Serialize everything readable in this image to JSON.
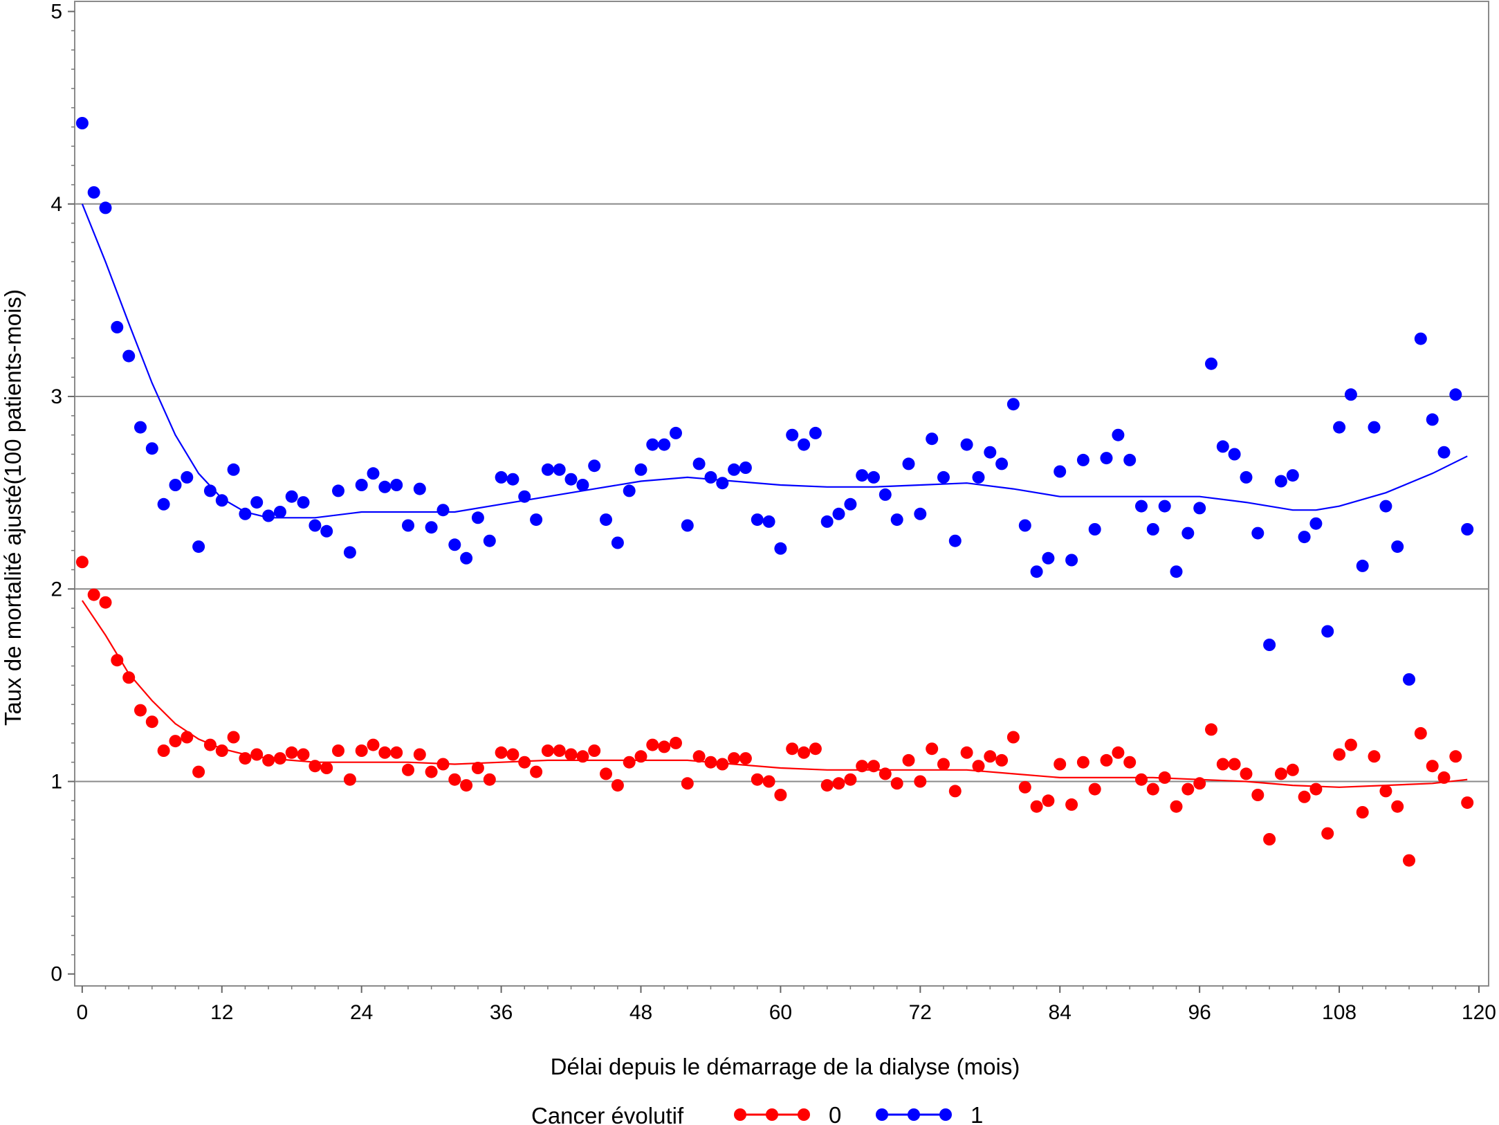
{
  "chart_data": {
    "type": "scatter",
    "title": "",
    "xlabel": "Délai depuis le démarrage de la dialyse (mois)",
    "ylabel": "Taux de mortalité ajusté(100 patients-mois)",
    "xlim": [
      0,
      120
    ],
    "ylim": [
      0,
      5
    ],
    "x_ticks": [
      "0",
      "12",
      "24",
      "36",
      "48",
      "60",
      "72",
      "84",
      "96",
      "108",
      "120"
    ],
    "y_ticks": [
      "0",
      "1",
      "2",
      "3",
      "4",
      "5"
    ],
    "grid": "horizontal",
    "legend": {
      "title": "Cancer évolutif",
      "placement": "bottom",
      "entries": [
        "0",
        "1"
      ]
    },
    "series": [
      {
        "name": "0",
        "color": "#ff0000",
        "points": [
          [
            0,
            2.14
          ],
          [
            1,
            1.97
          ],
          [
            2,
            1.93
          ],
          [
            3,
            1.63
          ],
          [
            4,
            1.54
          ],
          [
            5,
            1.37
          ],
          [
            6,
            1.31
          ],
          [
            7,
            1.16
          ],
          [
            8,
            1.21
          ],
          [
            9,
            1.23
          ],
          [
            10,
            1.05
          ],
          [
            11,
            1.19
          ],
          [
            12,
            1.16
          ],
          [
            13,
            1.23
          ],
          [
            14,
            1.12
          ],
          [
            15,
            1.14
          ],
          [
            16,
            1.11
          ],
          [
            17,
            1.12
          ],
          [
            18,
            1.15
          ],
          [
            19,
            1.14
          ],
          [
            20,
            1.08
          ],
          [
            21,
            1.07
          ],
          [
            22,
            1.16
          ],
          [
            23,
            1.01
          ],
          [
            24,
            1.16
          ],
          [
            25,
            1.19
          ],
          [
            26,
            1.15
          ],
          [
            27,
            1.15
          ],
          [
            28,
            1.06
          ],
          [
            29,
            1.14
          ],
          [
            30,
            1.05
          ],
          [
            31,
            1.09
          ],
          [
            32,
            1.01
          ],
          [
            33,
            0.98
          ],
          [
            34,
            1.07
          ],
          [
            35,
            1.01
          ],
          [
            36,
            1.15
          ],
          [
            37,
            1.14
          ],
          [
            38,
            1.1
          ],
          [
            39,
            1.05
          ],
          [
            40,
            1.16
          ],
          [
            41,
            1.16
          ],
          [
            42,
            1.14
          ],
          [
            43,
            1.13
          ],
          [
            44,
            1.16
          ],
          [
            45,
            1.04
          ],
          [
            46,
            0.98
          ],
          [
            47,
            1.1
          ],
          [
            48,
            1.13
          ],
          [
            49,
            1.19
          ],
          [
            50,
            1.18
          ],
          [
            51,
            1.2
          ],
          [
            52,
            0.99
          ],
          [
            53,
            1.13
          ],
          [
            54,
            1.1
          ],
          [
            55,
            1.09
          ],
          [
            56,
            1.12
          ],
          [
            57,
            1.12
          ],
          [
            58,
            1.01
          ],
          [
            59,
            1.0
          ],
          [
            60,
            0.93
          ],
          [
            61,
            1.17
          ],
          [
            62,
            1.15
          ],
          [
            63,
            1.17
          ],
          [
            64,
            0.98
          ],
          [
            65,
            0.99
          ],
          [
            66,
            1.01
          ],
          [
            67,
            1.08
          ],
          [
            68,
            1.08
          ],
          [
            69,
            1.04
          ],
          [
            70,
            0.99
          ],
          [
            71,
            1.11
          ],
          [
            72,
            1.0
          ],
          [
            73,
            1.17
          ],
          [
            74,
            1.09
          ],
          [
            75,
            0.95
          ],
          [
            76,
            1.15
          ],
          [
            77,
            1.08
          ],
          [
            78,
            1.13
          ],
          [
            79,
            1.11
          ],
          [
            80,
            1.23
          ],
          [
            81,
            0.97
          ],
          [
            82,
            0.87
          ],
          [
            83,
            0.9
          ],
          [
            84,
            1.09
          ],
          [
            85,
            0.88
          ],
          [
            86,
            1.1
          ],
          [
            87,
            0.96
          ],
          [
            88,
            1.11
          ],
          [
            89,
            1.15
          ],
          [
            90,
            1.1
          ],
          [
            91,
            1.01
          ],
          [
            92,
            0.96
          ],
          [
            93,
            1.02
          ],
          [
            94,
            0.87
          ],
          [
            95,
            0.96
          ],
          [
            96,
            0.99
          ],
          [
            97,
            1.27
          ],
          [
            98,
            1.09
          ],
          [
            99,
            1.09
          ],
          [
            100,
            1.04
          ],
          [
            101,
            0.93
          ],
          [
            102,
            0.7
          ],
          [
            103,
            1.04
          ],
          [
            104,
            1.06
          ],
          [
            105,
            0.92
          ],
          [
            106,
            0.96
          ],
          [
            107,
            0.73
          ],
          [
            108,
            1.14
          ],
          [
            109,
            1.19
          ],
          [
            110,
            0.84
          ],
          [
            111,
            1.13
          ],
          [
            112,
            0.95
          ],
          [
            113,
            0.87
          ],
          [
            114,
            0.59
          ],
          [
            115,
            1.25
          ],
          [
            116,
            1.08
          ],
          [
            117,
            1.02
          ],
          [
            118,
            1.13
          ],
          [
            119,
            0.89
          ]
        ],
        "smooth": [
          [
            0,
            1.94
          ],
          [
            2,
            1.76
          ],
          [
            4,
            1.56
          ],
          [
            6,
            1.42
          ],
          [
            8,
            1.3
          ],
          [
            10,
            1.22
          ],
          [
            12,
            1.17
          ],
          [
            14,
            1.14
          ],
          [
            16,
            1.12
          ],
          [
            18,
            1.11
          ],
          [
            20,
            1.1
          ],
          [
            24,
            1.1
          ],
          [
            28,
            1.1
          ],
          [
            32,
            1.09
          ],
          [
            36,
            1.1
          ],
          [
            40,
            1.11
          ],
          [
            44,
            1.11
          ],
          [
            48,
            1.11
          ],
          [
            52,
            1.11
          ],
          [
            56,
            1.09
          ],
          [
            60,
            1.07
          ],
          [
            64,
            1.06
          ],
          [
            68,
            1.06
          ],
          [
            72,
            1.06
          ],
          [
            76,
            1.06
          ],
          [
            80,
            1.04
          ],
          [
            84,
            1.02
          ],
          [
            88,
            1.02
          ],
          [
            92,
            1.02
          ],
          [
            96,
            1.01
          ],
          [
            100,
            1.0
          ],
          [
            104,
            0.98
          ],
          [
            108,
            0.97
          ],
          [
            112,
            0.98
          ],
          [
            116,
            0.99
          ],
          [
            119,
            1.01
          ]
        ]
      },
      {
        "name": "1",
        "color": "#0000ff",
        "points": [
          [
            0,
            4.42
          ],
          [
            1,
            4.06
          ],
          [
            2,
            3.98
          ],
          [
            3,
            3.36
          ],
          [
            4,
            3.21
          ],
          [
            5,
            2.84
          ],
          [
            6,
            2.73
          ],
          [
            7,
            2.44
          ],
          [
            8,
            2.54
          ],
          [
            9,
            2.58
          ],
          [
            10,
            2.22
          ],
          [
            11,
            2.51
          ],
          [
            12,
            2.46
          ],
          [
            13,
            2.62
          ],
          [
            14,
            2.39
          ],
          [
            15,
            2.45
          ],
          [
            16,
            2.38
          ],
          [
            17,
            2.4
          ],
          [
            18,
            2.48
          ],
          [
            19,
            2.45
          ],
          [
            20,
            2.33
          ],
          [
            21,
            2.3
          ],
          [
            22,
            2.51
          ],
          [
            23,
            2.19
          ],
          [
            24,
            2.54
          ],
          [
            25,
            2.6
          ],
          [
            26,
            2.53
          ],
          [
            27,
            2.54
          ],
          [
            28,
            2.33
          ],
          [
            29,
            2.52
          ],
          [
            30,
            2.32
          ],
          [
            31,
            2.41
          ],
          [
            32,
            2.23
          ],
          [
            33,
            2.16
          ],
          [
            34,
            2.37
          ],
          [
            35,
            2.25
          ],
          [
            36,
            2.58
          ],
          [
            37,
            2.57
          ],
          [
            38,
            2.48
          ],
          [
            39,
            2.36
          ],
          [
            40,
            2.62
          ],
          [
            41,
            2.62
          ],
          [
            42,
            2.57
          ],
          [
            43,
            2.54
          ],
          [
            44,
            2.64
          ],
          [
            45,
            2.36
          ],
          [
            46,
            2.24
          ],
          [
            47,
            2.51
          ],
          [
            48,
            2.62
          ],
          [
            49,
            2.75
          ],
          [
            50,
            2.75
          ],
          [
            51,
            2.81
          ],
          [
            52,
            2.33
          ],
          [
            53,
            2.65
          ],
          [
            54,
            2.58
          ],
          [
            55,
            2.55
          ],
          [
            56,
            2.62
          ],
          [
            57,
            2.63
          ],
          [
            58,
            2.36
          ],
          [
            59,
            2.35
          ],
          [
            60,
            2.21
          ],
          [
            61,
            2.8
          ],
          [
            62,
            2.75
          ],
          [
            63,
            2.81
          ],
          [
            64,
            2.35
          ],
          [
            65,
            2.39
          ],
          [
            66,
            2.44
          ],
          [
            67,
            2.59
          ],
          [
            68,
            2.58
          ],
          [
            69,
            2.49
          ],
          [
            70,
            2.36
          ],
          [
            71,
            2.65
          ],
          [
            72,
            2.39
          ],
          [
            73,
            2.78
          ],
          [
            74,
            2.58
          ],
          [
            75,
            2.25
          ],
          [
            76,
            2.75
          ],
          [
            77,
            2.58
          ],
          [
            78,
            2.71
          ],
          [
            79,
            2.65
          ],
          [
            80,
            2.96
          ],
          [
            81,
            2.33
          ],
          [
            82,
            2.09
          ],
          [
            83,
            2.16
          ],
          [
            84,
            2.61
          ],
          [
            85,
            2.15
          ],
          [
            86,
            2.67
          ],
          [
            87,
            2.31
          ],
          [
            88,
            2.68
          ],
          [
            89,
            2.8
          ],
          [
            90,
            2.67
          ],
          [
            91,
            2.43
          ],
          [
            92,
            2.31
          ],
          [
            93,
            2.43
          ],
          [
            94,
            2.09
          ],
          [
            95,
            2.29
          ],
          [
            96,
            2.42
          ],
          [
            97,
            3.17
          ],
          [
            98,
            2.74
          ],
          [
            99,
            2.7
          ],
          [
            100,
            2.58
          ],
          [
            101,
            2.29
          ],
          [
            102,
            1.71
          ],
          [
            103,
            2.56
          ],
          [
            104,
            2.59
          ],
          [
            105,
            2.27
          ],
          [
            106,
            2.34
          ],
          [
            107,
            1.78
          ],
          [
            108,
            2.84
          ],
          [
            109,
            3.01
          ],
          [
            110,
            2.12
          ],
          [
            111,
            2.84
          ],
          [
            112,
            2.43
          ],
          [
            113,
            2.22
          ],
          [
            114,
            1.53
          ],
          [
            115,
            3.3
          ],
          [
            116,
            2.88
          ],
          [
            117,
            2.71
          ],
          [
            118,
            3.01
          ],
          [
            119,
            2.31
          ]
        ],
        "smooth": [
          [
            0,
            4.0
          ],
          [
            2,
            3.7
          ],
          [
            4,
            3.38
          ],
          [
            6,
            3.07
          ],
          [
            8,
            2.8
          ],
          [
            10,
            2.6
          ],
          [
            12,
            2.47
          ],
          [
            14,
            2.4
          ],
          [
            16,
            2.37
          ],
          [
            18,
            2.37
          ],
          [
            20,
            2.37
          ],
          [
            24,
            2.4
          ],
          [
            28,
            2.4
          ],
          [
            32,
            2.4
          ],
          [
            36,
            2.44
          ],
          [
            40,
            2.48
          ],
          [
            44,
            2.52
          ],
          [
            48,
            2.56
          ],
          [
            52,
            2.58
          ],
          [
            56,
            2.56
          ],
          [
            60,
            2.54
          ],
          [
            64,
            2.53
          ],
          [
            68,
            2.53
          ],
          [
            72,
            2.54
          ],
          [
            76,
            2.55
          ],
          [
            80,
            2.52
          ],
          [
            84,
            2.48
          ],
          [
            88,
            2.48
          ],
          [
            92,
            2.48
          ],
          [
            96,
            2.48
          ],
          [
            100,
            2.45
          ],
          [
            104,
            2.41
          ],
          [
            106,
            2.41
          ],
          [
            108,
            2.43
          ],
          [
            112,
            2.5
          ],
          [
            116,
            2.6
          ],
          [
            119,
            2.69
          ]
        ]
      }
    ]
  }
}
